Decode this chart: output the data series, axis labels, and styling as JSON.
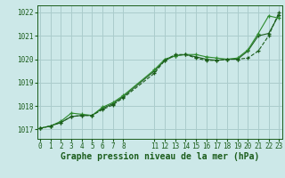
{
  "title": "Graphe pression niveau de la mer (hPa)",
  "bg_color": "#cce8e8",
  "grid_color": "#aacccc",
  "line_color_dark": "#1a5c1a",
  "line_color_med": "#2d8b2d",
  "xlim": [
    -0.3,
    23.3
  ],
  "ylim": [
    1016.6,
    1022.3
  ],
  "yticks": [
    1017,
    1018,
    1019,
    1020,
    1021,
    1022
  ],
  "xticks": [
    0,
    1,
    2,
    3,
    4,
    5,
    6,
    7,
    8,
    11,
    12,
    13,
    14,
    15,
    16,
    17,
    18,
    19,
    20,
    21,
    22,
    23
  ],
  "series1_x": [
    0,
    1,
    2,
    3,
    4,
    5,
    6,
    7,
    8,
    11,
    12,
    13,
    14,
    15,
    16,
    17,
    18,
    19,
    20,
    21,
    22,
    23
  ],
  "series1_y": [
    1017.05,
    1017.15,
    1017.3,
    1017.55,
    1017.6,
    1017.6,
    1017.85,
    1018.05,
    1018.35,
    1019.4,
    1019.95,
    1020.2,
    1020.2,
    1020.05,
    1019.95,
    1019.95,
    1020.0,
    1020.0,
    1020.05,
    1020.35,
    1021.0,
    1022.0
  ],
  "series2_x": [
    0,
    1,
    2,
    3,
    4,
    5,
    6,
    7,
    8,
    11,
    12,
    13,
    14,
    15,
    16,
    17,
    18,
    19,
    20,
    21,
    22,
    23
  ],
  "series2_y": [
    1017.05,
    1017.15,
    1017.35,
    1017.7,
    1017.65,
    1017.6,
    1017.95,
    1018.15,
    1018.45,
    1019.55,
    1020.0,
    1020.15,
    1020.2,
    1020.2,
    1020.1,
    1020.05,
    1020.0,
    1020.05,
    1020.4,
    1021.1,
    1021.85,
    1021.75
  ],
  "series3_x": [
    0,
    1,
    2,
    3,
    4,
    5,
    6,
    7,
    8,
    11,
    12,
    13,
    14,
    15,
    16,
    17,
    18,
    19,
    20,
    21,
    22,
    23
  ],
  "series3_y": [
    1017.05,
    1017.15,
    1017.3,
    1017.55,
    1017.6,
    1017.6,
    1017.9,
    1018.1,
    1018.4,
    1019.5,
    1019.95,
    1020.15,
    1020.2,
    1020.1,
    1020.0,
    1019.95,
    1020.0,
    1020.0,
    1020.35,
    1021.0,
    1021.1,
    1021.9
  ],
  "tick_fontsize": 5.5,
  "xlabel_fontsize": 7.0
}
